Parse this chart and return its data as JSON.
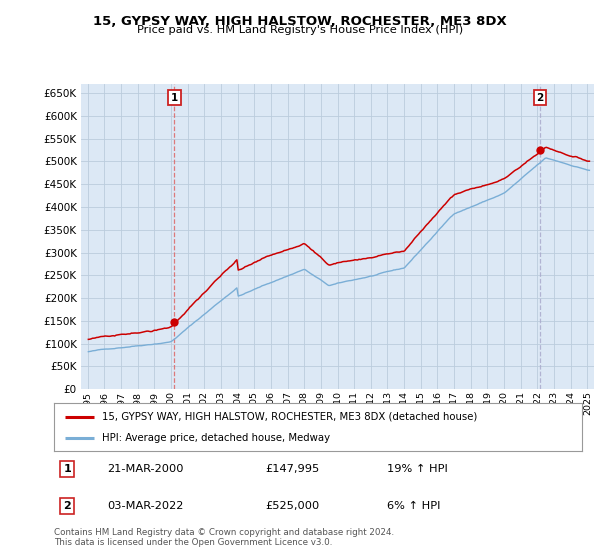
{
  "title": "15, GYPSY WAY, HIGH HALSTOW, ROCHESTER, ME3 8DX",
  "subtitle": "Price paid vs. HM Land Registry's House Price Index (HPI)",
  "ylim": [
    0,
    670000
  ],
  "yticks": [
    0,
    50000,
    100000,
    150000,
    200000,
    250000,
    300000,
    350000,
    400000,
    450000,
    500000,
    550000,
    600000,
    650000
  ],
  "background_color": "#ffffff",
  "grid_color": "#bbccdd",
  "plot_bg_color": "#dce8f5",
  "red_line_color": "#cc0000",
  "blue_line_color": "#7aaed6",
  "sale1_x": 2000.21,
  "sale1_y": 147995,
  "sale2_x": 2022.17,
  "sale2_y": 525000,
  "sale1_vline_color": "#dd6666",
  "sale2_vline_color": "#aaaacc",
  "legend_line1": "15, GYPSY WAY, HIGH HALSTOW, ROCHESTER, ME3 8DX (detached house)",
  "legend_line2": "HPI: Average price, detached house, Medway",
  "footnote": "Contains HM Land Registry data © Crown copyright and database right 2024.\nThis data is licensed under the Open Government Licence v3.0.",
  "table_rows": [
    {
      "num": "1",
      "date": "21-MAR-2000",
      "price": "£147,995",
      "hpi": "19% ↑ HPI"
    },
    {
      "num": "2",
      "date": "03-MAR-2022",
      "price": "£525,000",
      "hpi": "6% ↑ HPI"
    }
  ],
  "xlim_left": 1994.6,
  "xlim_right": 2025.4
}
